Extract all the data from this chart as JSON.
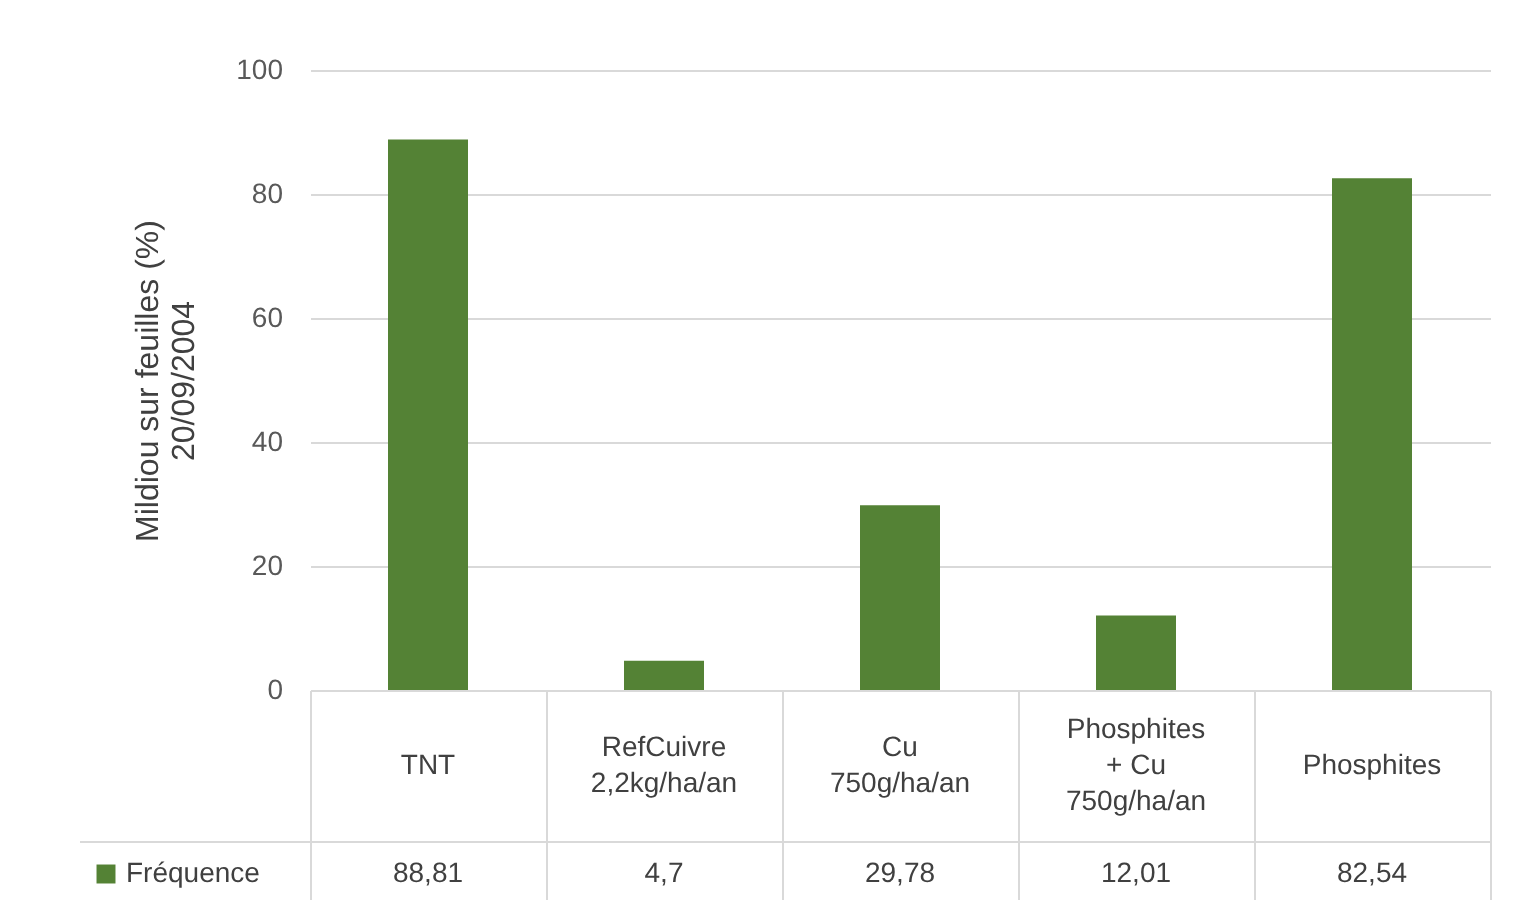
{
  "chart_data": {
    "type": "bar",
    "ylabel": "Mildiou sur feuilles (%)\n20/09/2004",
    "categories": [
      "TNT",
      "RefCuivre\n2,2kg/ha/an",
      "Cu\n750g/ha/an",
      "Phosphites\n+ Cu\n750g/ha/an",
      "Phosphites"
    ],
    "series": [
      {
        "name": "Fréquence",
        "color": "#548235",
        "values": [
          88.81,
          4.7,
          29.78,
          12.01,
          82.54
        ],
        "value_labels": [
          "88,81",
          "4,7",
          "29,78",
          "12,01",
          "82,54"
        ]
      }
    ],
    "ylim": [
      0,
      100
    ],
    "yticks": [
      0,
      20,
      40,
      60,
      80,
      100
    ],
    "grid": "y",
    "legend": "bottom"
  }
}
